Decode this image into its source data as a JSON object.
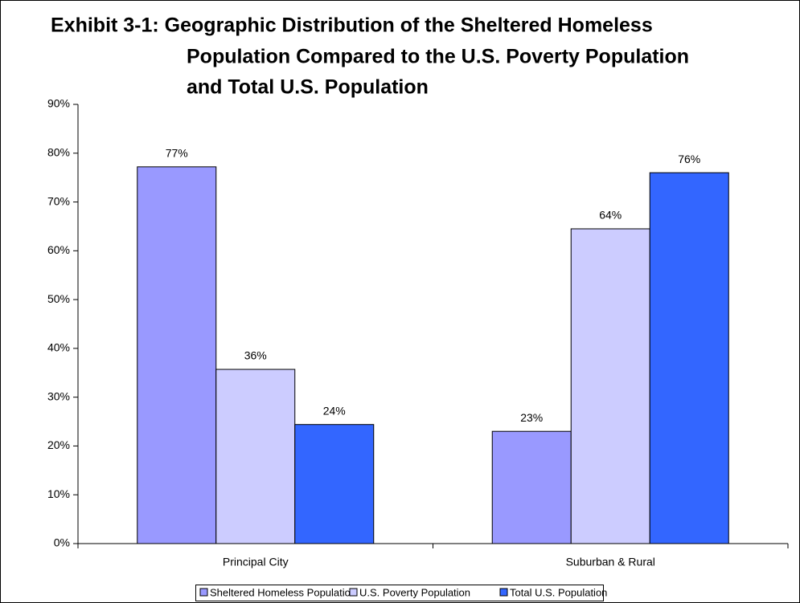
{
  "chart_data": {
    "type": "bar",
    "title": [
      "Exhibit 3-1: Geographic Distribution of the Sheltered Homeless",
      "Population Compared to the U.S. Poverty Population",
      "and Total U.S. Population"
    ],
    "categories": [
      "Principal City",
      "Suburban & Rural"
    ],
    "series": [
      {
        "name": "Sheltered Homeless Population",
        "color": "#9999ff",
        "values": [
          77.2,
          23.0
        ],
        "value_labels": [
          "77%",
          "23%"
        ]
      },
      {
        "name": "U.S. Poverty Population",
        "color": "#ccccff",
        "values": [
          35.7,
          64.5
        ],
        "value_labels": [
          "36%",
          "64%"
        ]
      },
      {
        "name": "Total U.S. Population",
        "color": "#3366ff",
        "values": [
          24.4,
          76.0
        ],
        "value_labels": [
          "24%",
          "76%"
        ]
      }
    ],
    "ylim": [
      0,
      90
    ],
    "yticks": [
      {
        "value": 0,
        "label": "0%"
      },
      {
        "value": 10,
        "label": "10%"
      },
      {
        "value": 20,
        "label": "20%"
      },
      {
        "value": 30,
        "label": "30%"
      },
      {
        "value": 40,
        "label": "40%"
      },
      {
        "value": 50,
        "label": "50%"
      },
      {
        "value": 60,
        "label": "60%"
      },
      {
        "value": 70,
        "label": "70%"
      },
      {
        "value": 80,
        "label": "80%"
      },
      {
        "value": 90,
        "label": "90%"
      }
    ],
    "legend": "bottom"
  }
}
